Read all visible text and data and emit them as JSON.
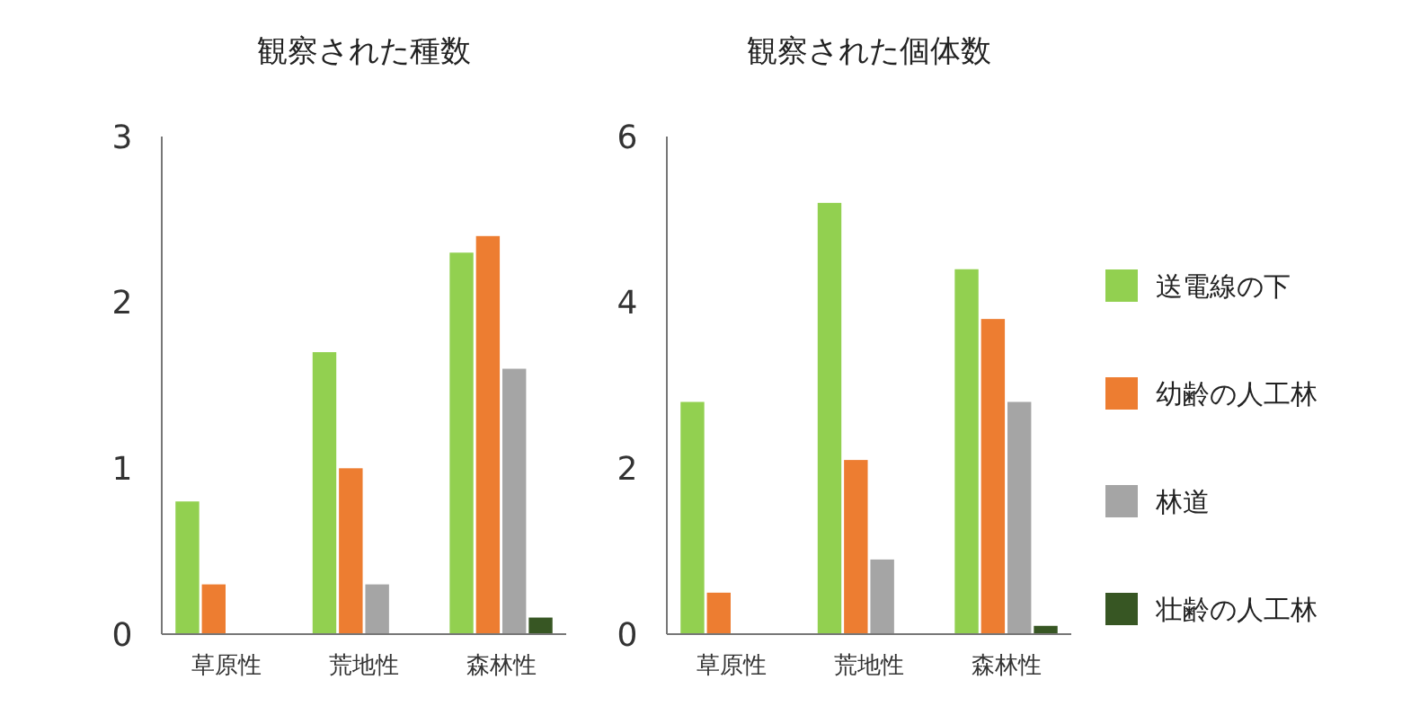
{
  "chart_data": [
    {
      "type": "bar",
      "title": "観察された種数",
      "categories": [
        "草原性",
        "荒地性",
        "森林性"
      ],
      "ylim": [
        0,
        3
      ],
      "yticks": [
        0,
        1,
        2,
        3
      ],
      "grid": false,
      "legend": false,
      "series": [
        {
          "color": "#92d050",
          "values": [
            0.8,
            1.7,
            2.3
          ]
        },
        {
          "color": "#ed7d31",
          "values": [
            0.3,
            1.0,
            2.4
          ]
        },
        {
          "color": "#a5a5a5",
          "values": [
            0,
            0.3,
            1.6
          ]
        },
        {
          "color": "#375623",
          "values": [
            0,
            0,
            0.1
          ]
        }
      ]
    },
    {
      "type": "bar",
      "title": "観察された個体数",
      "categories": [
        "草原性",
        "荒地性",
        "森林性"
      ],
      "ylim": [
        0,
        6
      ],
      "yticks": [
        0,
        2,
        4,
        6
      ],
      "grid": false,
      "legend": "right",
      "series": [
        {
          "name": "送電線の下",
          "color": "#92d050",
          "values": [
            2.8,
            5.2,
            4.4
          ]
        },
        {
          "name": "幼齢の人工林",
          "color": "#ed7d31",
          "values": [
            0.5,
            2.1,
            3.8
          ]
        },
        {
          "name": "林道",
          "color": "#a5a5a5",
          "values": [
            0,
            0.9,
            2.8
          ]
        },
        {
          "name": "壮齢の人工林",
          "color": "#375623",
          "values": [
            0,
            0,
            0.1
          ]
        }
      ]
    }
  ]
}
